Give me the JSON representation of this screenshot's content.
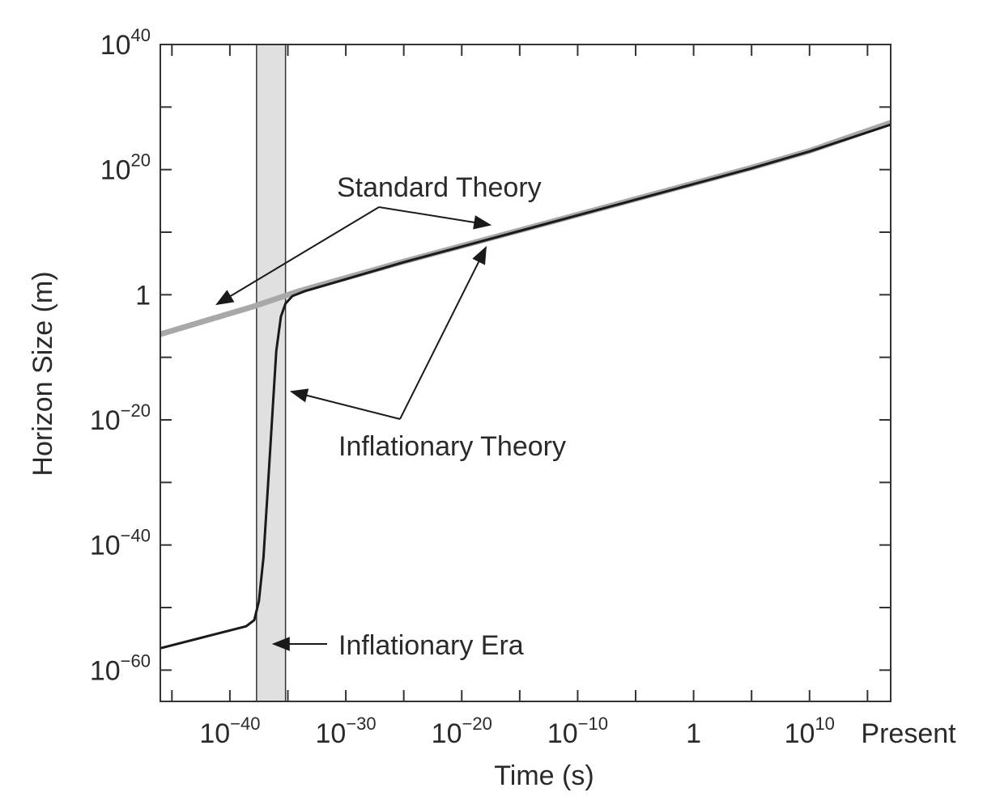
{
  "chart_data": {
    "type": "line",
    "xlabel": "Time (s)",
    "ylabel": "Horizon Size (m)",
    "x_scale": "log",
    "y_scale": "log",
    "xlim_exponent": [
      -46,
      17
    ],
    "ylim_exponent": [
      -65,
      40
    ],
    "grid": false,
    "x_ticks": [
      {
        "base": "10",
        "exp": "−40",
        "value_exp": -40
      },
      {
        "base": "10",
        "exp": "−30",
        "value_exp": -30
      },
      {
        "base": "10",
        "exp": "−20",
        "value_exp": -20
      },
      {
        "base": "10",
        "exp": "−10",
        "value_exp": -10
      },
      {
        "base": "1",
        "exp": "",
        "value_exp": 0
      },
      {
        "base": "10",
        "exp": "10",
        "value_exp": 10
      },
      {
        "base": "Present",
        "exp": "",
        "value_exp": 17.4
      }
    ],
    "x_minor_exponents": [
      -45,
      -35,
      -25,
      -15,
      -5,
      5,
      15
    ],
    "y_ticks": [
      {
        "base": "10",
        "exp": "40",
        "value_exp": 40
      },
      {
        "base": "10",
        "exp": "20",
        "value_exp": 20
      },
      {
        "base": "1",
        "exp": "",
        "value_exp": 0
      },
      {
        "base": "10",
        "exp": "−20",
        "value_exp": -20
      },
      {
        "base": "10",
        "exp": "−40",
        "value_exp": -40
      },
      {
        "base": "10",
        "exp": "−60",
        "value_exp": -60
      }
    ],
    "y_minor_exponents": [
      30,
      10,
      -10,
      -30,
      -50
    ],
    "shaded_region": {
      "label": "Inflationary Era",
      "x_exp_range": [
        -37.7,
        -35.2
      ]
    },
    "series": [
      {
        "name": "Standard Theory",
        "color": "#a8a8a8",
        "points_exp": [
          [
            -46,
            -6.3
          ],
          [
            -42,
            -4.1
          ],
          [
            -38,
            -1.9
          ],
          [
            -34,
            0.6
          ],
          [
            -25,
            5.3
          ],
          [
            -15,
            10.3
          ],
          [
            -5,
            15.3
          ],
          [
            5,
            20.3
          ],
          [
            10,
            23.0
          ],
          [
            17,
            27.5
          ]
        ]
      },
      {
        "name": "Inflationary Theory",
        "color": "#1a1a1a",
        "points_exp": [
          [
            -46,
            -56.5
          ],
          [
            -42,
            -54.6
          ],
          [
            -38.6,
            -53
          ],
          [
            -37.9,
            -52
          ],
          [
            -37.5,
            -49
          ],
          [
            -37.1,
            -42
          ],
          [
            -36.7,
            -30
          ],
          [
            -36.3,
            -18
          ],
          [
            -36.0,
            -9
          ],
          [
            -35.6,
            -3.5
          ],
          [
            -35.2,
            -1.4
          ],
          [
            -34.6,
            -0.2
          ],
          [
            -33.5,
            0.6
          ],
          [
            -25,
            5.2
          ],
          [
            -15,
            10.2
          ],
          [
            -5,
            15.2
          ],
          [
            5,
            20.2
          ],
          [
            10,
            22.9
          ],
          [
            17,
            27.2
          ]
        ]
      }
    ],
    "annotations": {
      "standard_theory": "Standard Theory",
      "inflationary_theory": "Inflationary Theory",
      "inflationary_era": "Inflationary Era"
    }
  }
}
